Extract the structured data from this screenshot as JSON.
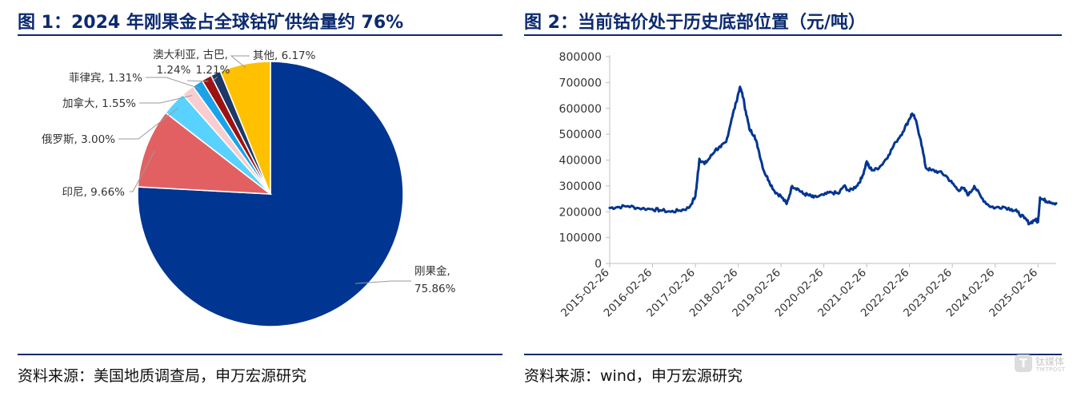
{
  "left": {
    "title": "图 1：2024 年刚果金占全球钴矿供给量约 76%",
    "source": "资料来源：美国地质调查局，申万宏源研究"
  },
  "right": {
    "title": "图 2：当前钴价处于历史底部位置（元/吨）",
    "source": "资料来源：wind，申万宏源研究"
  },
  "watermark": {
    "text_cn": "钛媒体",
    "text_en": "TMTPOST",
    "glyph": "T"
  },
  "chart_data": [
    {
      "type": "pie",
      "title": "",
      "slices": [
        {
          "name": "刚果金",
          "value": 75.86,
          "label": "刚果金,",
          "pct_label": "75.86%",
          "color": "#003591"
        },
        {
          "name": "印尼",
          "value": 9.66,
          "label": "印尼, 9.66%",
          "color": "#e36062"
        },
        {
          "name": "俄罗斯",
          "value": 3.0,
          "label": "俄罗斯, 3.00%",
          "color": "#5ad2ff"
        },
        {
          "name": "加拿大",
          "value": 1.55,
          "label": "加拿大, 1.55%",
          "color": "#f9cdd0"
        },
        {
          "name": "菲律宾",
          "value": 1.31,
          "label": "菲律宾, 1.31%",
          "color": "#1aa3e8"
        },
        {
          "name": "澳大利亚",
          "value": 1.24,
          "label": "1.24%",
          "color": "#9c1111"
        },
        {
          "name": "古巴",
          "value": 1.21,
          "label": "1.21%",
          "color": "#1c3866"
        },
        {
          "name": "其他",
          "value": 6.17,
          "label": "其他, 6.17%",
          "color": "#ffc000"
        }
      ],
      "group_label": "澳大利亚, 古巴,"
    },
    {
      "type": "line",
      "title": "",
      "xlabel": "",
      "ylabel": "",
      "ylim": [
        0,
        800000
      ],
      "y_ticks": [
        "0",
        "100000",
        "200000",
        "300000",
        "400000",
        "500000",
        "600000",
        "700000",
        "800000"
      ],
      "x_tick_labels": [
        "2015-02-26",
        "2016-02-26",
        "2017-02-26",
        "2018-02-26",
        "2019-02-26",
        "2020-02-26",
        "2021-02-26",
        "2022-02-26",
        "2023-02-26",
        "2024-02-26",
        "2025-02-26"
      ],
      "x_range": [
        "2015-02-26",
        "2025-07-31"
      ],
      "line_color": "#003591",
      "grid": false,
      "series": [
        {
          "x": [
            "2015-02-26",
            "2015-05-01",
            "2015-08-01",
            "2015-11-01",
            "2016-02-26",
            "2016-05-01",
            "2016-08-01",
            "2016-10-15",
            "2017-01-01",
            "2017-02-26",
            "2017-03-15",
            "2017-04-01",
            "2017-05-15",
            "2017-07-01",
            "2017-08-15",
            "2017-10-01",
            "2017-11-15",
            "2018-01-01",
            "2018-02-10",
            "2018-03-10",
            "2018-04-01",
            "2018-05-01",
            "2018-06-01",
            "2018-07-15",
            "2018-08-15",
            "2018-10-01",
            "2018-11-15",
            "2019-01-01",
            "2019-02-26",
            "2019-04-15",
            "2019-06-01",
            "2019-07-15",
            "2019-09-01",
            "2019-10-15",
            "2019-12-01",
            "2020-02-26",
            "2020-05-01",
            "2020-07-01",
            "2020-08-15",
            "2020-10-01",
            "2020-12-01",
            "2021-01-15",
            "2021-02-26",
            "2021-03-20",
            "2021-05-01",
            "2021-07-01",
            "2021-09-01",
            "2021-11-01",
            "2022-01-01",
            "2022-02-26",
            "2022-03-20",
            "2022-04-15",
            "2022-06-01",
            "2022-07-15",
            "2022-09-01",
            "2022-11-01",
            "2023-01-01",
            "2023-02-26",
            "2023-04-15",
            "2023-06-01",
            "2023-07-15",
            "2023-09-01",
            "2023-11-01",
            "2024-01-01",
            "2024-02-26",
            "2024-05-01",
            "2024-07-15",
            "2024-09-01",
            "2024-11-01",
            "2024-12-15",
            "2025-02-01",
            "2025-02-26",
            "2025-03-15",
            "2025-04-15",
            "2025-06-01",
            "2025-07-31"
          ],
          "values": [
            215000,
            218000,
            222000,
            214000,
            210000,
            206000,
            200000,
            205000,
            215000,
            260000,
            330000,
            405000,
            385000,
            410000,
            440000,
            450000,
            470000,
            560000,
            625000,
            680000,
            660000,
            590000,
            520000,
            495000,
            445000,
            360000,
            320000,
            280000,
            260000,
            230000,
            300000,
            290000,
            270000,
            265000,
            255000,
            265000,
            275000,
            270000,
            300000,
            280000,
            300000,
            330000,
            395000,
            370000,
            360000,
            380000,
            420000,
            470000,
            510000,
            560000,
            580000,
            560000,
            480000,
            370000,
            360000,
            355000,
            340000,
            310000,
            285000,
            290000,
            265000,
            300000,
            255000,
            225000,
            215000,
            220000,
            210000,
            200000,
            175000,
            155000,
            170000,
            160000,
            255000,
            245000,
            240000,
            233000
          ]
        }
      ]
    }
  ]
}
